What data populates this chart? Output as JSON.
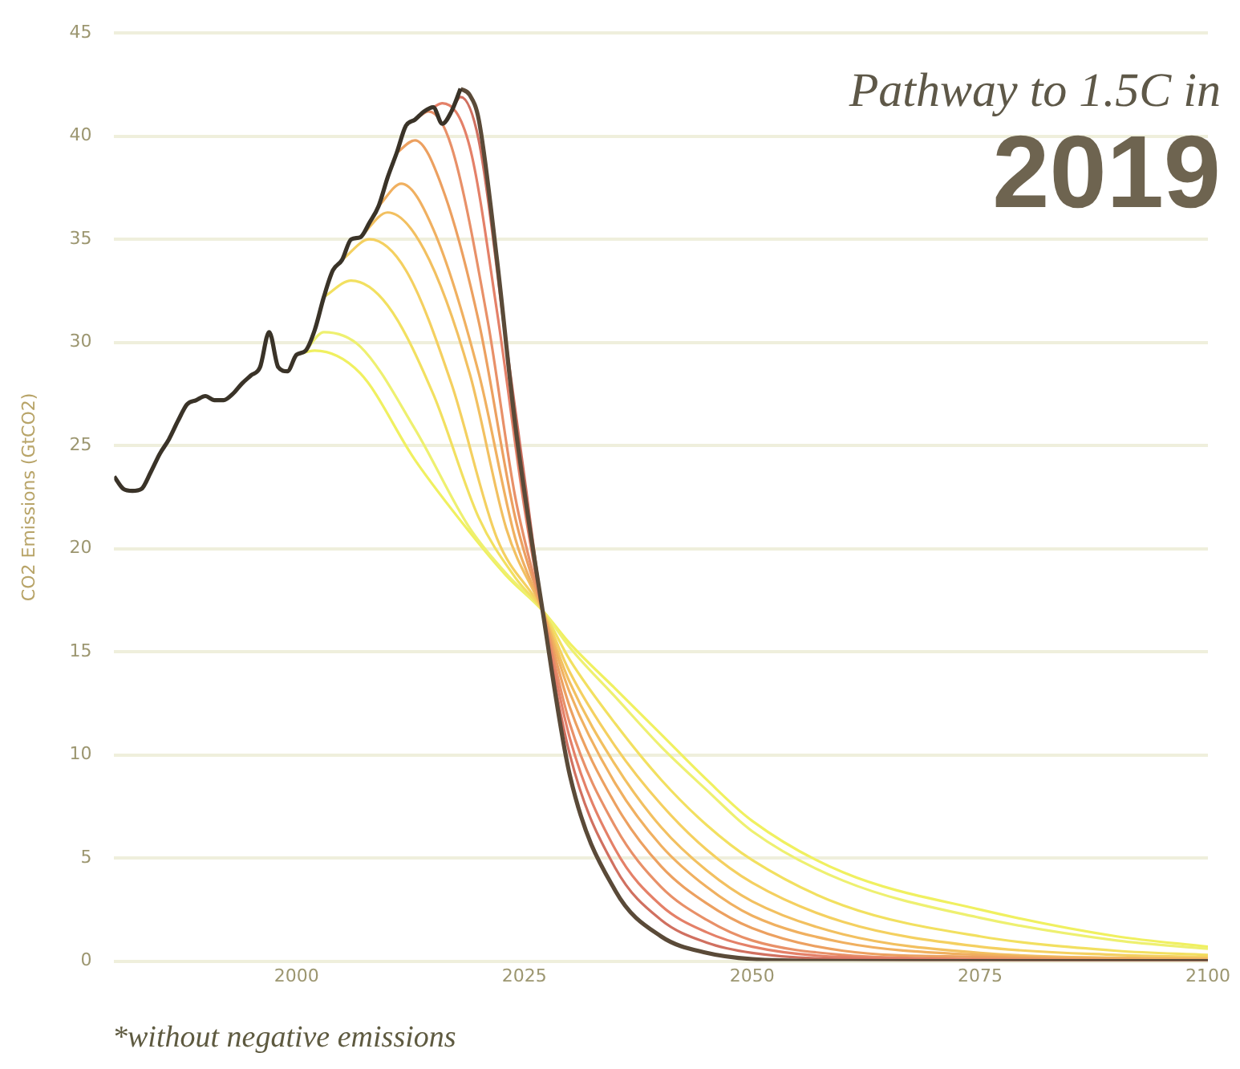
{
  "chart_data": {
    "type": "line",
    "title": "Pathway to 1.5C in",
    "subtitle": "2019",
    "ylabel": "CO2 Emissions (GtCO2)",
    "annotations": [
      "*without negative emissions"
    ],
    "xlim": [
      1980,
      2100
    ],
    "xticks": [
      2000,
      2025,
      2050,
      2075,
      2100
    ],
    "ylim": [
      0,
      45
    ],
    "yticks": [
      0,
      5,
      10,
      15,
      20,
      25,
      30,
      35,
      40,
      45
    ],
    "grid": "y",
    "legend": false,
    "series": [
      {
        "color": "#f0f060",
        "x": [
          2000,
          2002,
          2007,
          2013,
          2019,
          2023,
          2027,
          2030,
          2035,
          2040,
          2045,
          2050,
          2060,
          2075,
          2090,
          2100
        ],
        "values": [
          29.4,
          29.6,
          28.5,
          24.3,
          20.8,
          18.7,
          17.0,
          15.4,
          13.2,
          11.0,
          8.8,
          6.8,
          4.3,
          2.5,
          1.2,
          0.7
        ]
      },
      {
        "color": "#eef070",
        "x": [
          2001,
          2003,
          2007,
          2013,
          2019,
          2023,
          2027,
          2030,
          2035,
          2040,
          2045,
          2050,
          2060,
          2075,
          2090,
          2100
        ],
        "values": [
          29.6,
          30.5,
          29.8,
          25.8,
          21.0,
          18.8,
          17.0,
          15.2,
          12.8,
          10.4,
          8.3,
          6.3,
          3.9,
          2.1,
          1.0,
          0.6
        ]
      },
      {
        "color": "#f2e060",
        "x": [
          2003,
          2006,
          2010,
          2015,
          2020,
          2024,
          2027,
          2030,
          2035,
          2040,
          2045,
          2050,
          2060,
          2075,
          2090,
          2100
        ],
        "values": [
          32.2,
          33.0,
          31.8,
          27.5,
          21.5,
          18.6,
          17.0,
          14.6,
          11.5,
          8.8,
          6.6,
          4.9,
          2.7,
          1.2,
          0.5,
          0.3
        ]
      },
      {
        "color": "#f4d060",
        "x": [
          2005,
          2008,
          2012,
          2017,
          2022,
          2027,
          2030,
          2035,
          2040,
          2045,
          2050,
          2060,
          2075,
          2090,
          2100
        ],
        "values": [
          34.0,
          35.0,
          33.5,
          28.0,
          20.5,
          17.0,
          14.0,
          10.4,
          7.6,
          5.4,
          3.8,
          1.9,
          0.7,
          0.3,
          0.2
        ]
      },
      {
        "color": "#f2c060",
        "x": [
          2007,
          2010,
          2014,
          2019,
          2023,
          2027,
          2030,
          2035,
          2040,
          2045,
          2050,
          2060,
          2075,
          2100
        ],
        "values": [
          35.1,
          36.3,
          34.5,
          28.5,
          21.0,
          17.0,
          13.5,
          9.5,
          6.5,
          4.4,
          2.9,
          1.3,
          0.4,
          0.1
        ]
      },
      {
        "color": "#f0b060",
        "x": [
          2009,
          2011.5,
          2015,
          2020,
          2024,
          2027,
          2030,
          2035,
          2040,
          2045,
          2050,
          2060,
          2075,
          2100
        ],
        "values": [
          36.6,
          37.7,
          35.5,
          28.5,
          20.5,
          17.0,
          13.0,
          8.6,
          5.6,
          3.6,
          2.2,
          0.9,
          0.3,
          0.1
        ]
      },
      {
        "color": "#eca060",
        "x": [
          2011,
          2013,
          2016,
          2020,
          2024,
          2027,
          2030,
          2035,
          2040,
          2045,
          2050,
          2060,
          2075,
          2100
        ],
        "values": [
          39.2,
          39.8,
          37.5,
          31.0,
          21.5,
          17.0,
          12.3,
          7.6,
          4.6,
          2.8,
          1.6,
          0.5,
          0.2,
          0
        ]
      },
      {
        "color": "#e89068",
        "x": [
          2013,
          2014.5,
          2017,
          2021,
          2024,
          2027,
          2030,
          2035,
          2040,
          2045,
          2050,
          2060,
          2075,
          2100
        ],
        "values": [
          40.8,
          41.2,
          39.5,
          31.0,
          22.5,
          17.0,
          11.5,
          6.5,
          3.6,
          2.0,
          1.0,
          0.3,
          0.1,
          0
        ]
      },
      {
        "color": "#e48068",
        "x": [
          2015,
          2016,
          2019,
          2022,
          2025,
          2027,
          2030,
          2035,
          2040,
          2045,
          2050,
          2060,
          2100
        ],
        "values": [
          41.4,
          41.6,
          39.5,
          31.5,
          22.0,
          17.0,
          10.8,
          5.4,
          2.7,
          1.4,
          0.7,
          0.2,
          0
        ]
      },
      {
        "color": "#d07060",
        "x": [
          2017,
          2018,
          2020,
          2023,
          2025,
          2027,
          2030,
          2035,
          2040,
          2045,
          2050,
          2060,
          2100
        ],
        "values": [
          41.2,
          41.9,
          39.8,
          30.0,
          23.5,
          17.0,
          10.0,
          4.5,
          2.0,
          0.9,
          0.4,
          0.1,
          0
        ]
      },
      {
        "color": "#5a4a38",
        "x": [
          2018,
          2019,
          2020,
          2022,
          2024,
          2027,
          2030,
          2035,
          2040,
          2045,
          2050,
          2060,
          2100
        ],
        "values": [
          42.3,
          42.0,
          40.8,
          34.0,
          26.0,
          17.0,
          9.0,
          3.4,
          1.2,
          0.4,
          0.1,
          0,
          0
        ]
      },
      {
        "color": "#3a3328",
        "x": [
          1980,
          1981,
          1982,
          1983,
          1984,
          1985,
          1986,
          1987,
          1988,
          1989,
          1990,
          1991,
          1992,
          1993,
          1994,
          1995,
          1996,
          1997,
          1998,
          1999,
          2000,
          2001,
          2002,
          2003,
          2004,
          2005,
          2006,
          2007,
          2008,
          2009,
          2010,
          2011,
          2012,
          2013,
          2014,
          2015,
          2016,
          2017,
          2018
        ],
        "values": [
          23.5,
          22.9,
          22.8,
          22.9,
          23.7,
          24.6,
          25.3,
          26.2,
          27.0,
          27.2,
          27.4,
          27.2,
          27.2,
          27.5,
          28.0,
          28.4,
          28.8,
          30.5,
          28.8,
          28.6,
          29.4,
          29.6,
          30.6,
          32.2,
          33.5,
          34.0,
          35.0,
          35.1,
          35.8,
          36.6,
          38.0,
          39.2,
          40.5,
          40.8,
          41.2,
          41.4,
          40.6,
          41.2,
          42.3
        ]
      }
    ]
  }
}
